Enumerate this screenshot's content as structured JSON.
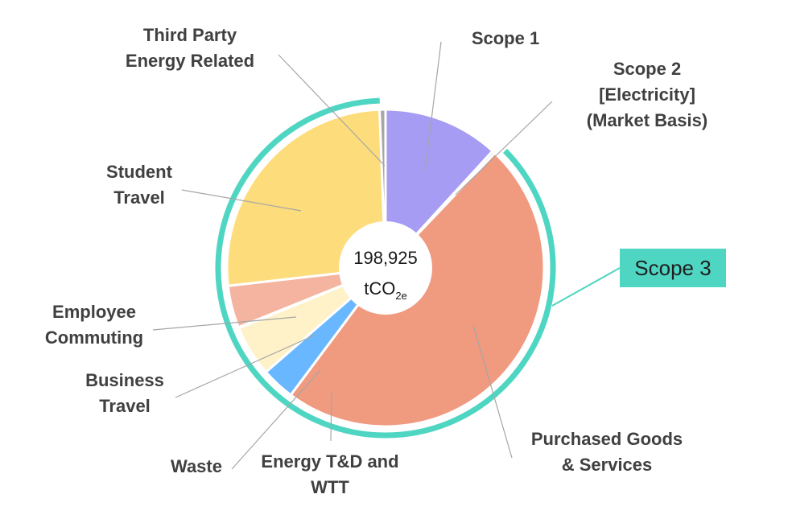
{
  "chart_data": {
    "type": "pie",
    "style": "donut",
    "total_label": "198,925",
    "unit": {
      "base": "tCO",
      "subscript": "2e"
    },
    "slices": [
      {
        "name": "Scope 1",
        "label_lines": [
          "Scope 1"
        ],
        "value": 11.8,
        "color": "#a69cf4"
      },
      {
        "name": "Scope 2 [Electricity] (Market Basis)",
        "label_lines": [
          "Scope 2",
          "[Electricity]",
          "(Market Basis)"
        ],
        "value": 0.3,
        "color": "#c7ddf6"
      },
      {
        "name": "Purchased Goods & Services",
        "label_lines": [
          "Purchased Goods",
          "& Services"
        ],
        "value": 48.1,
        "color": "#f09a80"
      },
      {
        "name": "Energy T&D and WTT",
        "label_lines": [
          "Energy T&D and",
          "WTT"
        ],
        "value": 3.4,
        "color": "#69b8ff"
      },
      {
        "name": "Waste",
        "label_lines": [
          "Waste"
        ],
        "value": 5.2,
        "color": "#fff1c8"
      },
      {
        "name": "Business Travel",
        "label_lines": [
          "Business",
          "Travel"
        ],
        "value": 0.1,
        "color": "#fff1c8"
      },
      {
        "name": "Employee Commuting",
        "label_lines": [
          "Employee",
          "Commuting"
        ],
        "value": 4.3,
        "color": "#f4b4a0"
      },
      {
        "name": "Student Travel",
        "label_lines": [
          "Student",
          "Travel"
        ],
        "value": 26.2,
        "color": "#fddc7b"
      },
      {
        "name": "Third Party Energy Related",
        "label_lines": [
          "Third Party",
          "Energy Related"
        ],
        "value": 0.6,
        "color": "#a6a6a6"
      }
    ],
    "groups": [
      {
        "name": "Scope 3",
        "label": "Scope 3",
        "color": "#4fd6c3",
        "box_color": "#4fd6c3"
      }
    ]
  }
}
